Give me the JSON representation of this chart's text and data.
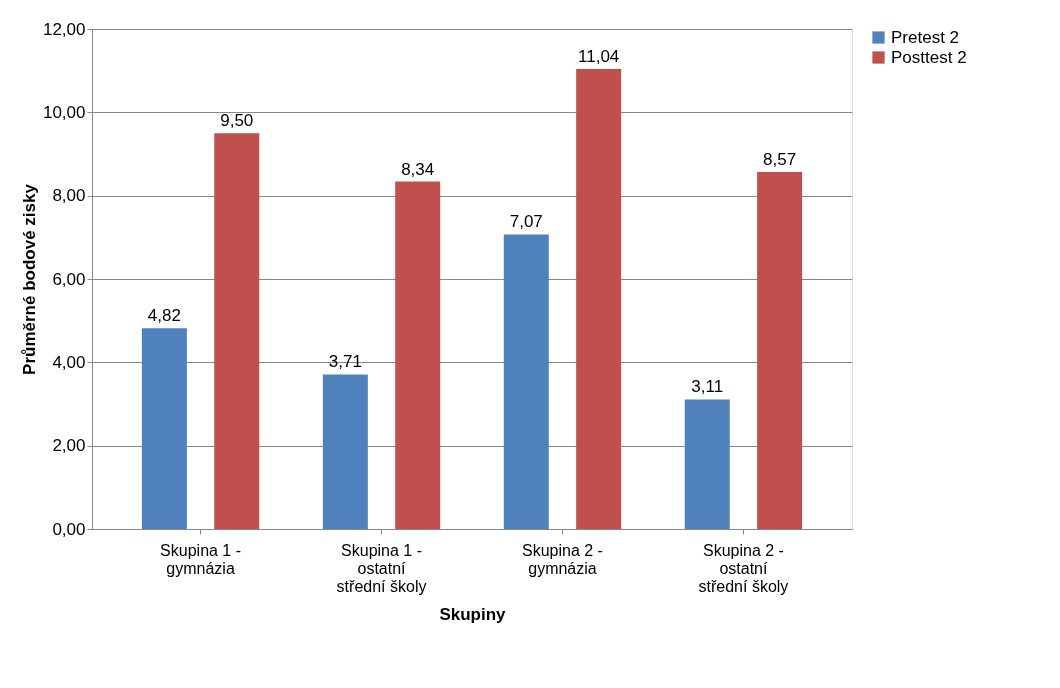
{
  "chart_data": {
    "type": "bar",
    "xlabel": "Skupiny",
    "ylabel": "Průměrné bodové zisky",
    "categories": [
      "Skupina 1 - gymnázia",
      "Skupina 1 - ostatní střední školy",
      "Skupina 2 - gymnázia",
      "Skupina 2 - ostatní střední školy"
    ],
    "series": [
      {
        "name": "Pretest 2",
        "color": "#4f81bd",
        "values": [
          4.82,
          3.71,
          7.07,
          3.11
        ],
        "value_labels": [
          "4,82",
          "3,71",
          "7,07",
          "3,11"
        ]
      },
      {
        "name": "Posttest 2",
        "color": "#c0504d",
        "values": [
          9.5,
          8.34,
          11.04,
          8.57
        ],
        "value_labels": [
          "9,50",
          "8,34",
          "11,04",
          "8,57"
        ]
      }
    ],
    "ylim": [
      0,
      12
    ],
    "yticks": [
      {
        "value": 0,
        "label": "0,00"
      },
      {
        "value": 2,
        "label": "2,00"
      },
      {
        "value": 4,
        "label": "4,00"
      },
      {
        "value": 6,
        "label": "6,00"
      },
      {
        "value": 8,
        "label": "8,00"
      },
      {
        "value": 10,
        "label": "10,00"
      },
      {
        "value": 12,
        "label": "12,00"
      }
    ],
    "grid": "y",
    "legend": "right"
  }
}
